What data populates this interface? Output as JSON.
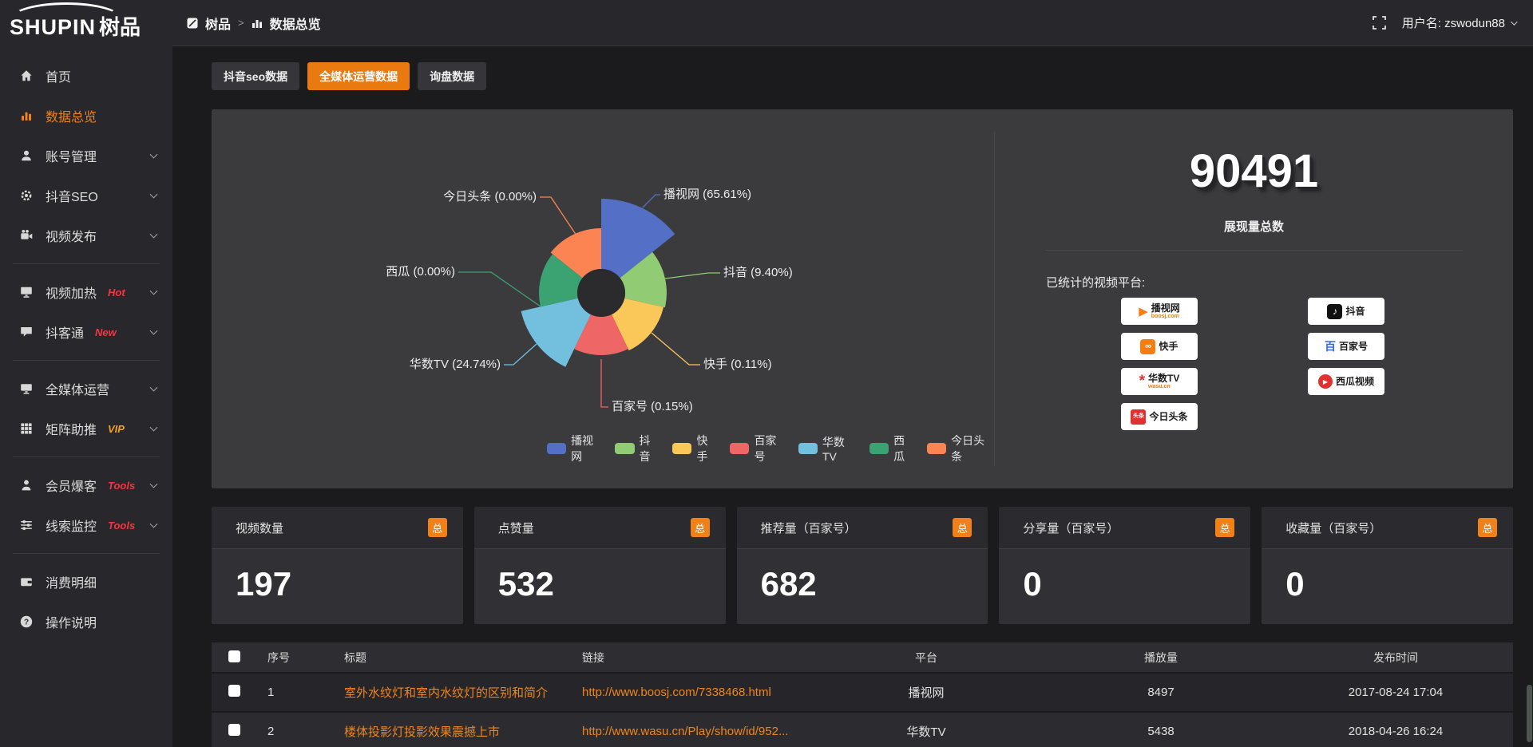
{
  "logo": {
    "en": "SHUPIN",
    "cn": "树品"
  },
  "header": {
    "breadcrumb": {
      "root": "树品",
      "separator": ">",
      "current": "数据总览"
    },
    "username": "用户名: zswodun88"
  },
  "sidebar": {
    "items": [
      {
        "key": "home",
        "label": "首页",
        "icon": "home",
        "tag": "",
        "chevron": false,
        "active": false,
        "divider_after": false
      },
      {
        "key": "data-overview",
        "label": "数据总览",
        "icon": "chart-bars",
        "tag": "",
        "chevron": false,
        "active": true,
        "divider_after": false
      },
      {
        "key": "account-management",
        "label": "账号管理",
        "icon": "user",
        "tag": "",
        "chevron": true,
        "active": false,
        "divider_after": false
      },
      {
        "key": "douyin-seo",
        "label": "抖音SEO",
        "icon": "gear",
        "tag": "",
        "chevron": true,
        "active": false,
        "divider_after": false
      },
      {
        "key": "video-publish",
        "label": "视频发布",
        "icon": "video-camera",
        "tag": "",
        "chevron": true,
        "active": false,
        "divider_after": true
      },
      {
        "key": "video-heating",
        "label": "视频加热",
        "icon": "monitor-play",
        "tag": "Hot",
        "tag_color": "#f5353f",
        "chevron": true,
        "active": false,
        "divider_after": false
      },
      {
        "key": "douketong",
        "label": "抖客通",
        "icon": "chat",
        "tag": "New",
        "tag_color": "#f5353f",
        "chevron": true,
        "active": false,
        "divider_after": true
      },
      {
        "key": "media-operation",
        "label": "全媒体运营",
        "icon": "monitor",
        "tag": "",
        "chevron": true,
        "active": false,
        "divider_after": false
      },
      {
        "key": "matrix-boost",
        "label": "矩阵助推",
        "icon": "grid",
        "tag": "VIP",
        "tag_color": "#f0a122",
        "chevron": true,
        "active": false,
        "divider_after": true
      },
      {
        "key": "member-baoke",
        "label": "会员爆客",
        "icon": "person",
        "tag": "Tools",
        "tag_color": "#f5353f",
        "chevron": true,
        "active": false,
        "divider_after": false
      },
      {
        "key": "clue-monitor",
        "label": "线索监控",
        "icon": "sliders",
        "tag": "Tools",
        "tag_color": "#f5353f",
        "chevron": true,
        "active": false,
        "divider_after": true
      },
      {
        "key": "consumption-detail",
        "label": "消费明细",
        "icon": "wallet",
        "tag": "",
        "chevron": false,
        "active": false,
        "divider_after": false
      },
      {
        "key": "operation-guide",
        "label": "操作说明",
        "icon": "question",
        "tag": "",
        "chevron": false,
        "active": false,
        "divider_after": false
      }
    ]
  },
  "tabs": [
    {
      "key": "douyin-seo-data",
      "label": "抖音seo数据",
      "active": false
    },
    {
      "key": "media-operation-data",
      "label": "全媒体运营数据",
      "active": true
    },
    {
      "key": "inquiry-data",
      "label": "询盘数据",
      "active": false
    }
  ],
  "chart_data": {
    "type": "pie",
    "variant": "nightingale-rose",
    "title": "",
    "legend_position": "bottom",
    "series": [
      {
        "name": "播视网",
        "percent": 65.61,
        "label": "播视网 (65.61%)",
        "color": "#5470c6"
      },
      {
        "name": "抖音",
        "percent": 9.4,
        "label": "抖音 (9.40%)",
        "color": "#91cc75"
      },
      {
        "name": "快手",
        "percent": 0.11,
        "label": "快手 (0.11%)",
        "color": "#fac858"
      },
      {
        "name": "百家号",
        "percent": 0.15,
        "label": "百家号 (0.15%)",
        "color": "#ee6666"
      },
      {
        "name": "华数TV",
        "percent": 24.74,
        "label": "华数TV (24.74%)",
        "color": "#73c0de"
      },
      {
        "name": "西瓜",
        "percent": 0.0,
        "label": "西瓜 (0.00%)",
        "color": "#3ba272"
      },
      {
        "name": "今日头条",
        "percent": 0.0,
        "label": "今日头条 (0.00%)",
        "color": "#fc8452"
      }
    ],
    "legend": [
      "播视网",
      "抖音",
      "快手",
      "百家号",
      "华数TV",
      "西瓜",
      "今日头条"
    ]
  },
  "summary": {
    "total": "90491",
    "total_label": "展现量总数",
    "platforms_title": "已统计的视频平台:",
    "platforms": [
      {
        "name": "播视网",
        "sub": "boosj.com",
        "icon": "boosj-logo"
      },
      {
        "name": "抖音",
        "sub": "",
        "icon": "douyin-logo"
      },
      {
        "name": "快手",
        "sub": "",
        "icon": "kuaishou-logo"
      },
      {
        "name": "百家号",
        "sub": "",
        "icon": "baijiahao-logo"
      },
      {
        "name": "华数TV",
        "sub": "wasu.cn",
        "icon": "wasu-logo"
      },
      {
        "name": "西瓜视频",
        "sub": "",
        "icon": "xigua-logo"
      },
      {
        "name": "今日头条",
        "sub": "",
        "icon": "toutiao-logo"
      }
    ]
  },
  "stat_cards": [
    {
      "label": "视频数量",
      "badge": "总",
      "value": "197"
    },
    {
      "label": "点赞量",
      "badge": "总",
      "value": "532"
    },
    {
      "label": "推荐量（百家号）",
      "badge": "总",
      "value": "682"
    },
    {
      "label": "分享量（百家号）",
      "badge": "总",
      "value": "0"
    },
    {
      "label": "收藏量（百家号）",
      "badge": "总",
      "value": "0"
    }
  ],
  "table": {
    "headers": [
      "序号",
      "标题",
      "链接",
      "平台",
      "播放量",
      "发布时间"
    ],
    "rows": [
      {
        "index": "1",
        "title": "室外水纹灯和室内水纹灯的区别和简介",
        "link": "http://www.boosj.com/7338468.html",
        "platform": "播视网",
        "views": "8497",
        "time": "2017-08-24 17:04"
      },
      {
        "index": "2",
        "title": "楼体投影灯投影效果震撼上市",
        "link": "http://www.wasu.cn/Play/show/id/952...",
        "platform": "华数TV",
        "views": "5438",
        "time": "2018-04-26 16:24"
      }
    ]
  },
  "colors": {
    "accent": "#e87a10",
    "link": "#f0851c",
    "panel": "#3b3b3e",
    "sidebar": "#28282c"
  }
}
